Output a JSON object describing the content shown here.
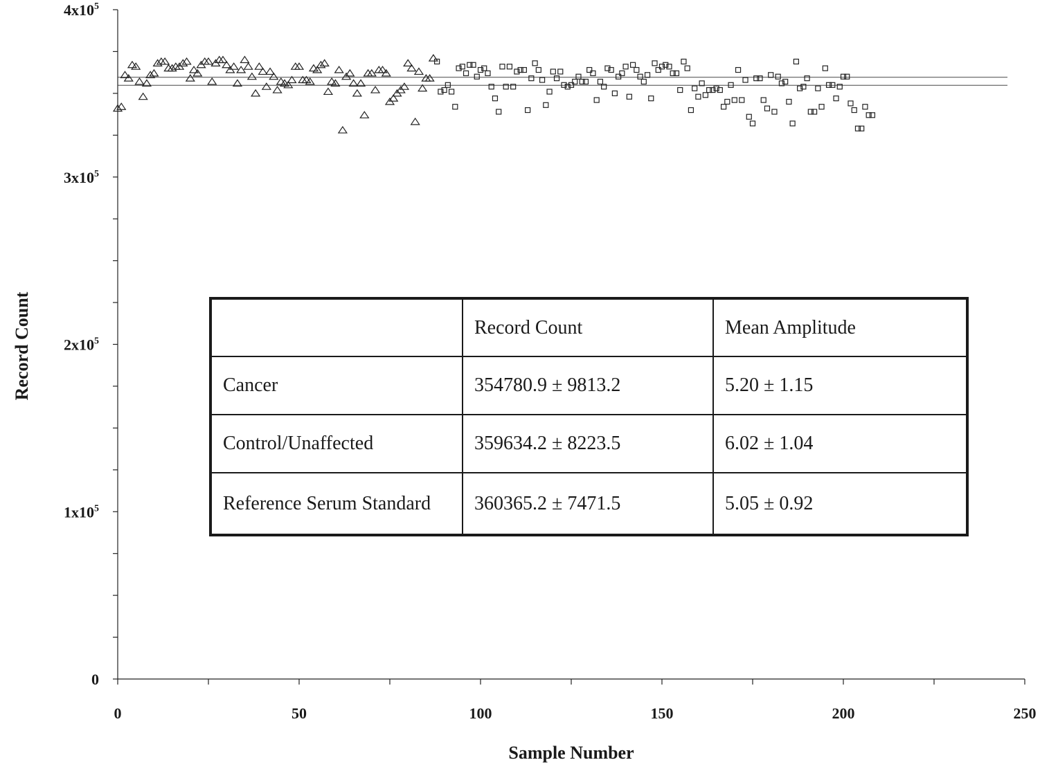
{
  "chart_data": {
    "type": "scatter",
    "xlabel": "Sample Number",
    "ylabel": "Record Count",
    "xlim": [
      0,
      250
    ],
    "ylim": [
      0,
      400000
    ],
    "x_ticks": [
      "0",
      "50",
      "100",
      "150",
      "200",
      "250"
    ],
    "y_ticks": [
      "0",
      "1x10",
      "2x10",
      "3x10",
      "4x10"
    ],
    "y_tick_exponent": "5",
    "reference_lines": [
      354780.9,
      359634.2
    ],
    "series": [
      {
        "marker": "triangle",
        "points": [
          [
            0,
            341000
          ],
          [
            1,
            342000
          ],
          [
            2,
            361000
          ],
          [
            3,
            359000
          ],
          [
            4,
            367000
          ],
          [
            5,
            366000
          ],
          [
            6,
            357000
          ],
          [
            7,
            348000
          ],
          [
            8,
            356000
          ],
          [
            9,
            361000
          ],
          [
            10,
            362000
          ],
          [
            11,
            368000
          ],
          [
            12,
            369000
          ],
          [
            13,
            369000
          ],
          [
            14,
            365000
          ],
          [
            15,
            365000
          ],
          [
            16,
            366000
          ],
          [
            17,
            366000
          ],
          [
            18,
            368000
          ],
          [
            19,
            369000
          ],
          [
            20,
            359000
          ],
          [
            21,
            364000
          ],
          [
            22,
            362000
          ],
          [
            23,
            367000
          ],
          [
            24,
            369000
          ],
          [
            25,
            369000
          ],
          [
            26,
            357000
          ],
          [
            27,
            368000
          ],
          [
            28,
            370000
          ],
          [
            29,
            370000
          ],
          [
            30,
            367000
          ],
          [
            31,
            364000
          ],
          [
            32,
            366000
          ],
          [
            33,
            356000
          ],
          [
            34,
            364000
          ],
          [
            35,
            370000
          ],
          [
            36,
            366000
          ],
          [
            37,
            360000
          ],
          [
            38,
            350000
          ],
          [
            39,
            366000
          ],
          [
            40,
            363000
          ],
          [
            41,
            354000
          ],
          [
            42,
            363000
          ],
          [
            43,
            360000
          ],
          [
            44,
            352000
          ],
          [
            45,
            357000
          ],
          [
            46,
            356000
          ],
          [
            47,
            355000
          ],
          [
            48,
            358000
          ],
          [
            49,
            366000
          ],
          [
            50,
            366000
          ],
          [
            51,
            358000
          ],
          [
            52,
            358000
          ],
          [
            53,
            357000
          ],
          [
            54,
            365000
          ],
          [
            55,
            364000
          ],
          [
            56,
            367000
          ],
          [
            57,
            368000
          ],
          [
            58,
            351000
          ],
          [
            59,
            357000
          ],
          [
            60,
            356000
          ],
          [
            61,
            364000
          ],
          [
            62,
            328000
          ],
          [
            63,
            360000
          ],
          [
            64,
            362000
          ],
          [
            65,
            356000
          ],
          [
            66,
            350000
          ],
          [
            67,
            356000
          ],
          [
            68,
            337000
          ],
          [
            69,
            362000
          ],
          [
            70,
            362000
          ],
          [
            71,
            352000
          ],
          [
            72,
            364000
          ],
          [
            73,
            364000
          ],
          [
            74,
            362000
          ],
          [
            75,
            345000
          ],
          [
            76,
            347000
          ],
          [
            77,
            350000
          ],
          [
            78,
            352000
          ],
          [
            79,
            354000
          ],
          [
            80,
            368000
          ],
          [
            81,
            365000
          ],
          [
            82,
            333000
          ],
          [
            83,
            363000
          ],
          [
            84,
            353000
          ],
          [
            85,
            359000
          ],
          [
            86,
            359000
          ],
          [
            87,
            371000
          ]
        ]
      },
      {
        "marker": "square",
        "points": [
          [
            88,
            369000
          ],
          [
            89,
            351000
          ],
          [
            90,
            352000
          ],
          [
            91,
            355000
          ],
          [
            92,
            351000
          ],
          [
            93,
            342000
          ],
          [
            94,
            365000
          ],
          [
            95,
            366000
          ],
          [
            96,
            362000
          ],
          [
            97,
            367000
          ],
          [
            98,
            367000
          ],
          [
            99,
            360000
          ],
          [
            100,
            364000
          ],
          [
            101,
            365000
          ],
          [
            102,
            362000
          ],
          [
            103,
            354000
          ],
          [
            104,
            347000
          ],
          [
            105,
            339000
          ],
          [
            106,
            366000
          ],
          [
            107,
            354000
          ],
          [
            108,
            366000
          ],
          [
            109,
            354000
          ],
          [
            110,
            363000
          ],
          [
            111,
            364000
          ],
          [
            112,
            364000
          ],
          [
            113,
            340000
          ],
          [
            114,
            359000
          ],
          [
            115,
            368000
          ],
          [
            116,
            364000
          ],
          [
            117,
            358000
          ],
          [
            118,
            343000
          ],
          [
            119,
            351000
          ],
          [
            120,
            363000
          ],
          [
            121,
            359000
          ],
          [
            122,
            363000
          ],
          [
            123,
            355000
          ],
          [
            124,
            354000
          ],
          [
            125,
            355000
          ],
          [
            126,
            357000
          ],
          [
            127,
            360000
          ],
          [
            128,
            357000
          ],
          [
            129,
            357000
          ],
          [
            130,
            364000
          ],
          [
            131,
            362000
          ],
          [
            132,
            346000
          ],
          [
            133,
            357000
          ],
          [
            134,
            354000
          ],
          [
            135,
            365000
          ],
          [
            136,
            364000
          ],
          [
            137,
            350000
          ],
          [
            138,
            360000
          ],
          [
            139,
            362000
          ],
          [
            140,
            366000
          ],
          [
            141,
            348000
          ],
          [
            142,
            367000
          ],
          [
            143,
            364000
          ],
          [
            144,
            360000
          ],
          [
            145,
            357000
          ],
          [
            146,
            361000
          ],
          [
            147,
            347000
          ],
          [
            148,
            368000
          ],
          [
            149,
            364000
          ],
          [
            150,
            366000
          ],
          [
            151,
            367000
          ],
          [
            152,
            366000
          ],
          [
            153,
            362000
          ],
          [
            154,
            362000
          ],
          [
            155,
            352000
          ],
          [
            156,
            369000
          ],
          [
            157,
            365000
          ],
          [
            158,
            340000
          ],
          [
            159,
            353000
          ],
          [
            160,
            348000
          ],
          [
            161,
            356000
          ],
          [
            162,
            349000
          ],
          [
            163,
            352000
          ],
          [
            164,
            352000
          ],
          [
            165,
            353000
          ],
          [
            166,
            352000
          ],
          [
            167,
            342000
          ],
          [
            168,
            345000
          ],
          [
            169,
            355000
          ],
          [
            170,
            346000
          ],
          [
            171,
            364000
          ],
          [
            172,
            346000
          ],
          [
            173,
            358000
          ],
          [
            174,
            336000
          ],
          [
            175,
            332000
          ],
          [
            176,
            359000
          ],
          [
            177,
            359000
          ],
          [
            178,
            346000
          ],
          [
            179,
            341000
          ],
          [
            180,
            361000
          ],
          [
            181,
            339000
          ],
          [
            182,
            360000
          ],
          [
            183,
            356000
          ],
          [
            184,
            357000
          ],
          [
            185,
            345000
          ],
          [
            186,
            332000
          ],
          [
            187,
            369000
          ],
          [
            188,
            353000
          ],
          [
            189,
            354000
          ],
          [
            190,
            359000
          ],
          [
            191,
            339000
          ],
          [
            192,
            339000
          ],
          [
            193,
            353000
          ],
          [
            194,
            342000
          ],
          [
            195,
            365000
          ],
          [
            196,
            355000
          ],
          [
            197,
            355000
          ],
          [
            198,
            347000
          ],
          [
            199,
            354000
          ],
          [
            200,
            360000
          ],
          [
            201,
            360000
          ],
          [
            202,
            344000
          ],
          [
            203,
            340000
          ],
          [
            204,
            329000
          ],
          [
            205,
            329000
          ],
          [
            206,
            342000
          ],
          [
            207,
            337000
          ],
          [
            208,
            337000
          ]
        ]
      }
    ],
    "table": {
      "header": [
        "",
        "Record Count",
        "Mean Amplitude"
      ],
      "rows": [
        [
          "Cancer",
          "354780.9 ± 9813.2",
          "5.20 ± 1.15"
        ],
        [
          "Control/Unaffected",
          "359634.2 ± 8223.5",
          "6.02 ± 1.04"
        ],
        [
          "Reference Serum Standard",
          "360365.2 ± 7471.5",
          "5.05 ± 0.92"
        ]
      ]
    }
  }
}
